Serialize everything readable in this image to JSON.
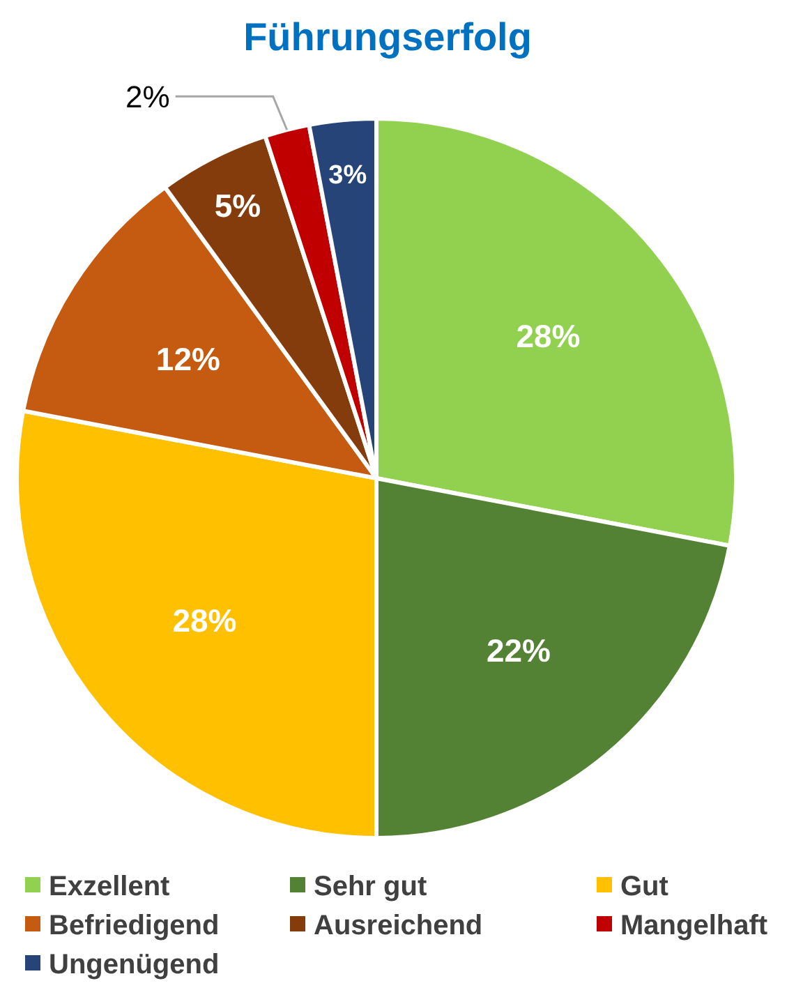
{
  "chart_data": {
    "type": "pie",
    "title": "Führungserfolg",
    "categories": [
      "Exzellent",
      "Sehr gut",
      "Gut",
      "Befriedigend",
      "Ausreichend",
      "Mangelhaft",
      "Ungenügend"
    ],
    "values": [
      28,
      22,
      28,
      12,
      5,
      2,
      3
    ],
    "value_labels": [
      "28%",
      "22%",
      "28%",
      "12%",
      "5%",
      "2%",
      "3%"
    ],
    "colors": [
      "#92d050",
      "#548235",
      "#ffc000",
      "#c55a11",
      "#843c0c",
      "#c00000",
      "#264478"
    ],
    "legend": "bottom"
  }
}
